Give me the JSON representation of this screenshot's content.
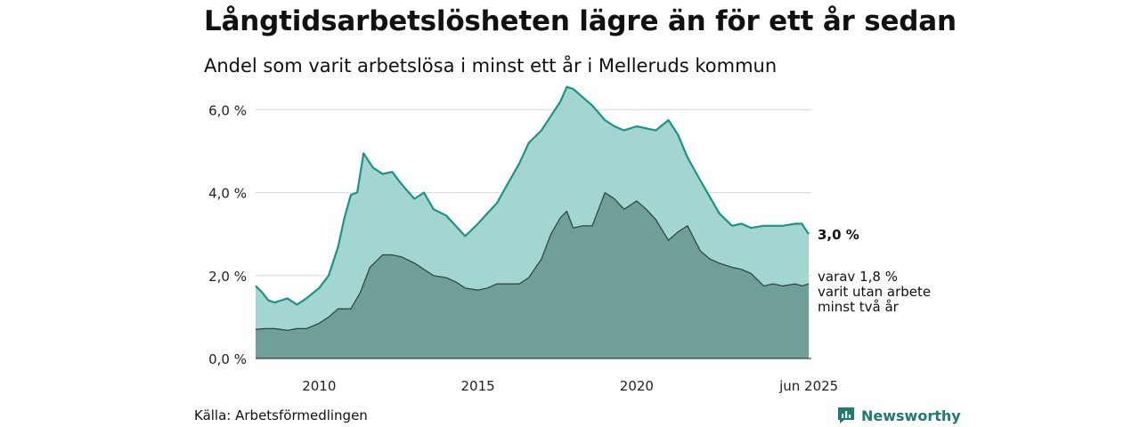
{
  "title": "Långtidsarbetslösheten lägre än för ett år sedan",
  "subtitle": "Andel som varit arbetslösa i minst ett år i Melleruds kommun",
  "source": "Källa: Arbetsförmedlingen",
  "logo": {
    "text": "Newsworthy",
    "icon": "newsworthy-logo-icon"
  },
  "colors": {
    "series1_fill": "#a3d6d0",
    "series1_line": "#1a9485",
    "series2_fill": "#6f9f98",
    "series2_line": "#2b3f3c",
    "grid": "#dddddd",
    "logo": "#1f7a70"
  },
  "chart_data": {
    "type": "area",
    "x_unit": "year",
    "xlim": [
      2008.0,
      2025.5
    ],
    "ylim": [
      0,
      6.5
    ],
    "grid": true,
    "ytick_values": [
      0,
      2,
      4,
      6
    ],
    "ytick_labels": [
      "0,0 %",
      "2,0 %",
      "4,0 %",
      "6,0 %"
    ],
    "xtick_values": [
      2010,
      2015,
      2020,
      2025.42
    ],
    "xtick_labels": [
      "2010",
      "2015",
      "2020",
      "jun 2025"
    ],
    "series": [
      {
        "values_x": [
          2008.0,
          2008.2,
          2008.4,
          2008.6,
          2009.0,
          2009.3,
          2009.6,
          2010.0,
          2010.3,
          2010.6,
          2010.8,
          2011.0,
          2011.2,
          2011.4,
          2011.7,
          2012.0,
          2012.3,
          2012.6,
          2013.0,
          2013.3,
          2013.6,
          2014.0,
          2014.3,
          2014.6,
          2015.0,
          2015.3,
          2015.6,
          2016.0,
          2016.3,
          2016.6,
          2017.0,
          2017.3,
          2017.6,
          2017.8,
          2018.0,
          2018.3,
          2018.6,
          2019.0,
          2019.3,
          2019.6,
          2020.0,
          2020.3,
          2020.6,
          2021.0,
          2021.3,
          2021.6,
          2022.0,
          2022.3,
          2022.6,
          2023.0,
          2023.3,
          2023.6,
          2024.0,
          2024.3,
          2024.6,
          2025.0,
          2025.2,
          2025.42
        ],
        "values_y": [
          1.75,
          1.6,
          1.4,
          1.35,
          1.45,
          1.3,
          1.45,
          1.7,
          2.0,
          2.7,
          3.4,
          3.95,
          4.0,
          4.95,
          4.6,
          4.45,
          4.5,
          4.2,
          3.85,
          4.0,
          3.6,
          3.45,
          3.2,
          2.95,
          3.25,
          3.5,
          3.75,
          4.3,
          4.7,
          5.2,
          5.5,
          5.85,
          6.2,
          6.55,
          6.5,
          6.3,
          6.1,
          5.75,
          5.6,
          5.5,
          5.6,
          5.55,
          5.5,
          5.75,
          5.4,
          4.85,
          4.3,
          3.9,
          3.5,
          3.2,
          3.25,
          3.15,
          3.2,
          3.2,
          3.2,
          3.25,
          3.25,
          3.0
        ]
      },
      {
        "values_x": [
          2008.0,
          2008.3,
          2008.6,
          2009.0,
          2009.3,
          2009.6,
          2010.0,
          2010.3,
          2010.6,
          2011.0,
          2011.3,
          2011.6,
          2012.0,
          2012.3,
          2012.6,
          2013.0,
          2013.3,
          2013.6,
          2014.0,
          2014.3,
          2014.6,
          2015.0,
          2015.3,
          2015.6,
          2016.0,
          2016.3,
          2016.6,
          2017.0,
          2017.3,
          2017.6,
          2017.8,
          2018.0,
          2018.3,
          2018.6,
          2019.0,
          2019.3,
          2019.6,
          2020.0,
          2020.3,
          2020.6,
          2021.0,
          2021.3,
          2021.6,
          2022.0,
          2022.3,
          2022.6,
          2023.0,
          2023.3,
          2023.6,
          2024.0,
          2024.3,
          2024.6,
          2025.0,
          2025.2,
          2025.42
        ],
        "values_y": [
          0.7,
          0.72,
          0.72,
          0.68,
          0.72,
          0.72,
          0.85,
          1.0,
          1.2,
          1.2,
          1.6,
          2.2,
          2.5,
          2.5,
          2.45,
          2.3,
          2.15,
          2.0,
          1.95,
          1.85,
          1.7,
          1.65,
          1.7,
          1.8,
          1.8,
          1.8,
          1.95,
          2.4,
          3.0,
          3.4,
          3.55,
          3.15,
          3.2,
          3.2,
          4.0,
          3.85,
          3.6,
          3.8,
          3.6,
          3.35,
          2.85,
          3.05,
          3.2,
          2.6,
          2.4,
          2.3,
          2.2,
          2.15,
          2.05,
          1.75,
          1.8,
          1.75,
          1.8,
          1.75,
          1.8
        ]
      }
    ],
    "end_labels": {
      "series1": "3,0 %",
      "series2_lines": [
        "varav 1,8 %",
        "varit utan arbete",
        "minst två år"
      ]
    }
  }
}
